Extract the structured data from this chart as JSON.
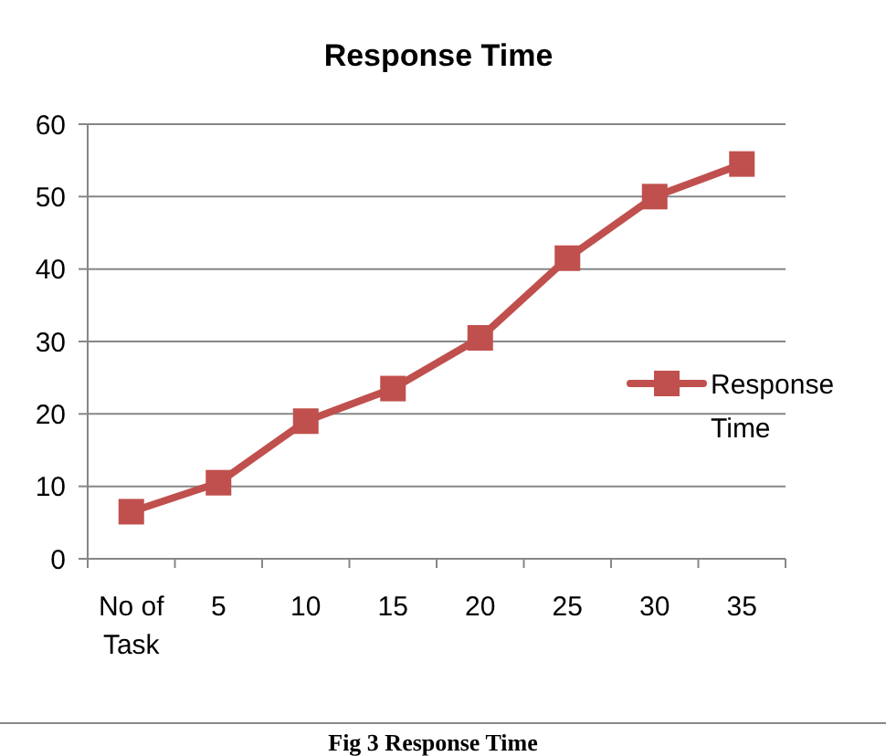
{
  "chart_data": {
    "type": "line",
    "title": "Response Time",
    "categories": [
      "No of Task",
      "5",
      "10",
      "15",
      "20",
      "25",
      "30",
      "35"
    ],
    "series": [
      {
        "name": "Response Time",
        "color": "#c0504d",
        "values": [
          6.5,
          10.5,
          19,
          23.5,
          30.5,
          41.5,
          50,
          54.5
        ]
      }
    ],
    "ylim": [
      0,
      60
    ],
    "yticks": [
      0,
      10,
      20,
      30,
      40,
      50,
      60
    ],
    "grid": "y",
    "legend": "right",
    "marker": "square",
    "line_style": "solid",
    "annotations": [
      "Fig 3 Response Time"
    ]
  }
}
